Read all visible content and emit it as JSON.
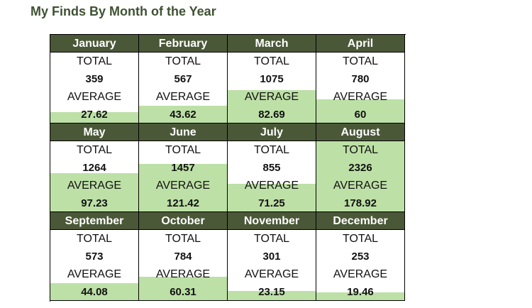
{
  "title": "My Finds By Month of the Year",
  "labels": {
    "total": "TOTAL",
    "average": "AVERAGE"
  },
  "colors": {
    "header": "#4a5838",
    "bar": "#bde0a6",
    "title": "#3f5232"
  },
  "max_average": 178.92,
  "months": [
    {
      "name": "January",
      "total": "359",
      "average": "27.62"
    },
    {
      "name": "February",
      "total": "567",
      "average": "43.62"
    },
    {
      "name": "March",
      "total": "1075",
      "average": "82.69"
    },
    {
      "name": "April",
      "total": "780",
      "average": "60"
    },
    {
      "name": "May",
      "total": "1264",
      "average": "97.23"
    },
    {
      "name": "June",
      "total": "1457",
      "average": "121.42"
    },
    {
      "name": "July",
      "total": "855",
      "average": "71.25"
    },
    {
      "name": "August",
      "total": "2326",
      "average": "178.92"
    },
    {
      "name": "September",
      "total": "573",
      "average": "44.08"
    },
    {
      "name": "October",
      "total": "784",
      "average": "60.31"
    },
    {
      "name": "November",
      "total": "301",
      "average": "23.15"
    },
    {
      "name": "December",
      "total": "253",
      "average": "19.46"
    }
  ]
}
